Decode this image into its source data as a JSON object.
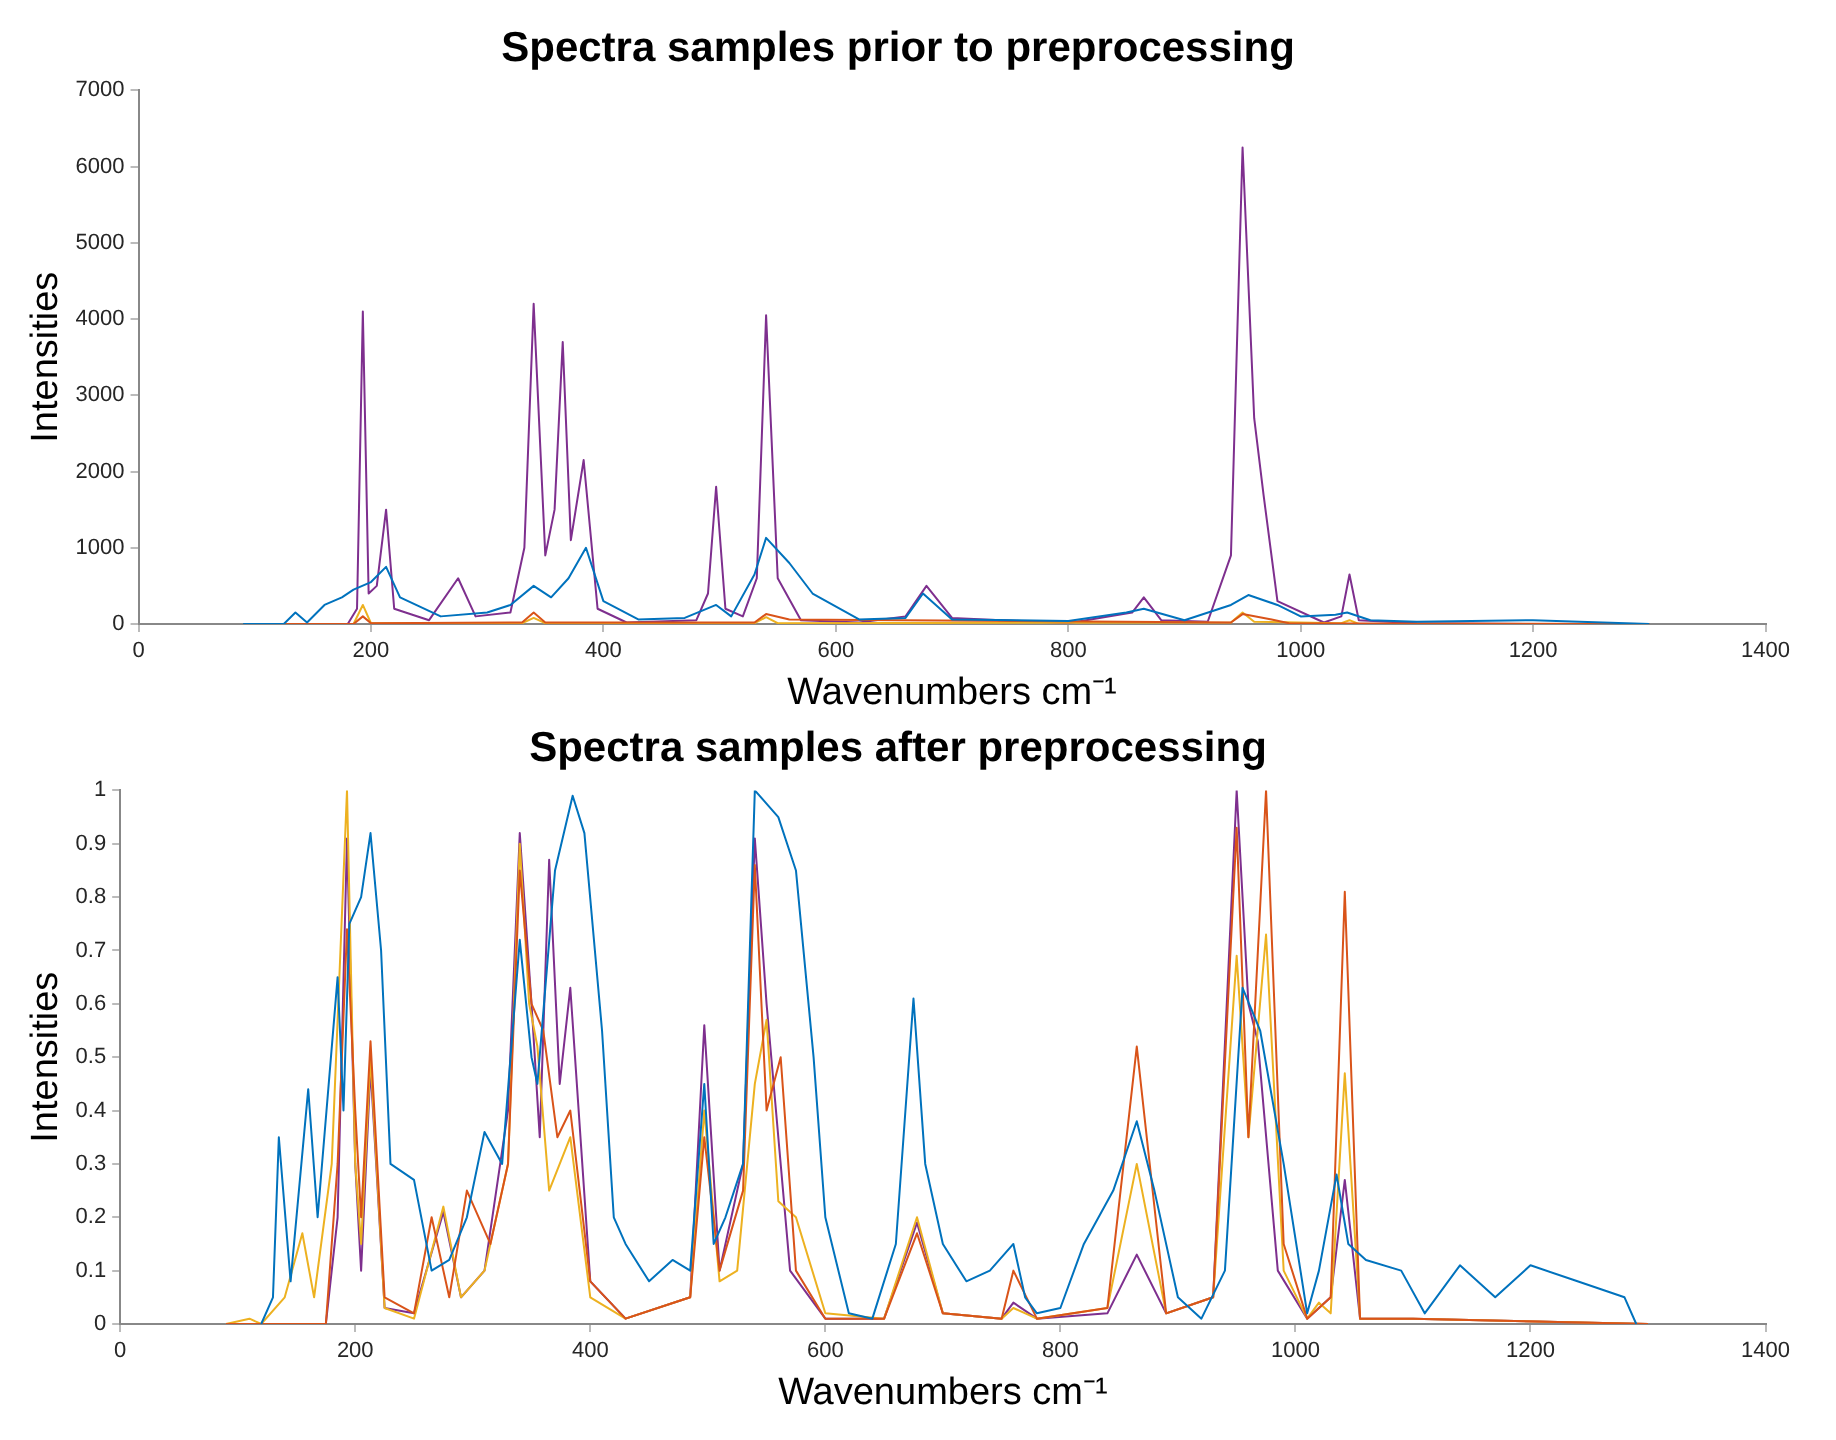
{
  "chart_data": [
    {
      "type": "line",
      "title": "Spectra samples prior to preprocessing",
      "xlabel": "Wavenumbers cm⁻¹",
      "ylabel": "Intensities",
      "xlim": [
        0,
        1400
      ],
      "xticks": [
        0,
        200,
        400,
        600,
        800,
        1000,
        1200,
        1400
      ],
      "ylim": [
        0,
        7000
      ],
      "yticks": [
        0,
        1000,
        2000,
        3000,
        4000,
        5000,
        6000,
        7000
      ],
      "grid": false,
      "legend": false,
      "marker": "none",
      "line_style": "solid",
      "series": [
        {
          "color": "#0072bd",
          "x": [
            90,
            125,
            135,
            145,
            160,
            175,
            185,
            200,
            213,
            225,
            260,
            300,
            320,
            340,
            355,
            370,
            385,
            400,
            430,
            470,
            497,
            510,
            530,
            540,
            560,
            580,
            620,
            660,
            675,
            700,
            800,
            850,
            865,
            900,
            940,
            955,
            980,
            1000,
            1030,
            1040,
            1060,
            1100,
            1200,
            1300
          ],
          "values": [
            0,
            0,
            150,
            20,
            250,
            350,
            450,
            550,
            750,
            350,
            100,
            150,
            250,
            500,
            350,
            600,
            1000,
            300,
            60,
            80,
            250,
            100,
            650,
            1130,
            800,
            400,
            60,
            80,
            400,
            60,
            40,
            150,
            200,
            50,
            250,
            380,
            250,
            100,
            120,
            150,
            50,
            30,
            50,
            0
          ]
        },
        {
          "color": "#d95319",
          "x": [
            90,
            185,
            193,
            200,
            330,
            340,
            350,
            530,
            540,
            560,
            940,
            950,
            975,
            990,
            1300
          ],
          "values": [
            0,
            0,
            100,
            10,
            20,
            150,
            20,
            20,
            130,
            60,
            20,
            130,
            60,
            10,
            0
          ]
        },
        {
          "color": "#edb120",
          "x": [
            90,
            185,
            193,
            200,
            330,
            340,
            350,
            530,
            540,
            550,
            940,
            950,
            960,
            1035,
            1042,
            1050,
            1300
          ],
          "values": [
            0,
            0,
            250,
            10,
            10,
            80,
            10,
            10,
            90,
            10,
            20,
            150,
            30,
            10,
            50,
            0,
            0
          ]
        },
        {
          "color": "#7e2f8e",
          "x": [
            90,
            180,
            188,
            193,
            198,
            205,
            213,
            220,
            250,
            275,
            290,
            320,
            332,
            340,
            350,
            358,
            365,
            372,
            383,
            395,
            420,
            480,
            490,
            497,
            505,
            520,
            532,
            540,
            550,
            570,
            620,
            660,
            678,
            700,
            800,
            855,
            865,
            880,
            920,
            940,
            950,
            960,
            968,
            980,
            1020,
            1035,
            1042,
            1050,
            1100,
            1200,
            1300
          ],
          "values": [
            0,
            0,
            200,
            4100,
            400,
            500,
            1500,
            200,
            50,
            600,
            100,
            150,
            1000,
            4200,
            900,
            1500,
            3700,
            1100,
            2150,
            200,
            20,
            50,
            400,
            1800,
            200,
            100,
            600,
            4050,
            600,
            50,
            20,
            100,
            500,
            80,
            10,
            150,
            350,
            50,
            30,
            900,
            6250,
            2700,
            1700,
            300,
            20,
            100,
            650,
            50,
            10,
            0,
            0
          ]
        }
      ]
    },
    {
      "type": "line",
      "title": "Spectra samples after preprocessing",
      "xlabel": "Wavenumbers cm⁻¹",
      "ylabel": "Intensities",
      "xlim": [
        0,
        1400
      ],
      "xticks": [
        0,
        200,
        400,
        600,
        800,
        1000,
        1200,
        1400
      ],
      "ylim": [
        0,
        1
      ],
      "yticks": [
        0,
        0.1,
        0.2,
        0.3,
        0.4,
        0.5,
        0.6,
        0.7,
        0.8,
        0.9,
        1
      ],
      "grid": false,
      "legend": false,
      "marker": "none",
      "line_style": "solid",
      "series": [
        {
          "color": "#0072bd",
          "x": [
            120,
            130,
            135,
            145,
            160,
            168,
            185,
            190,
            195,
            205,
            213,
            222,
            230,
            250,
            265,
            280,
            295,
            310,
            325,
            340,
            350,
            355,
            370,
            385,
            395,
            410,
            420,
            430,
            450,
            470,
            485,
            497,
            505,
            515,
            530,
            540,
            560,
            575,
            590,
            600,
            620,
            640,
            660,
            675,
            685,
            700,
            720,
            740,
            760,
            770,
            780,
            800,
            820,
            845,
            865,
            880,
            900,
            920,
            940,
            955,
            970,
            990,
            1010,
            1020,
            1035,
            1045,
            1060,
            1090,
            1110,
            1140,
            1170,
            1200,
            1240,
            1280,
            1290
          ],
          "values": [
            0,
            0.05,
            0.35,
            0.08,
            0.44,
            0.2,
            0.65,
            0.4,
            0.75,
            0.8,
            0.92,
            0.7,
            0.3,
            0.27,
            0.1,
            0.12,
            0.2,
            0.36,
            0.3,
            0.72,
            0.5,
            0.45,
            0.85,
            0.99,
            0.92,
            0.55,
            0.2,
            0.15,
            0.08,
            0.12,
            0.1,
            0.45,
            0.15,
            0.2,
            0.3,
            1.0,
            0.95,
            0.85,
            0.5,
            0.2,
            0.02,
            0.01,
            0.15,
            0.61,
            0.3,
            0.15,
            0.08,
            0.1,
            0.15,
            0.05,
            0.02,
            0.03,
            0.15,
            0.25,
            0.38,
            0.25,
            0.05,
            0.01,
            0.1,
            0.63,
            0.55,
            0.3,
            0.02,
            0.1,
            0.28,
            0.15,
            0.12,
            0.1,
            0.02,
            0.11,
            0.05,
            0.11,
            0.08,
            0.05,
            0
          ]
        },
        {
          "color": "#d95319",
          "x": [
            90,
            175,
            185,
            193,
            200,
            205,
            213,
            225,
            250,
            265,
            280,
            295,
            315,
            330,
            340,
            350,
            360,
            372,
            383,
            400,
            430,
            485,
            497,
            510,
            530,
            540,
            550,
            562,
            575,
            600,
            650,
            678,
            700,
            750,
            760,
            780,
            840,
            865,
            890,
            930,
            950,
            960,
            975,
            990,
            1010,
            1030,
            1042,
            1055,
            1100,
            1300
          ],
          "values": [
            0,
            0,
            0.3,
            0.74,
            0.4,
            0.2,
            0.53,
            0.05,
            0.02,
            0.2,
            0.05,
            0.25,
            0.15,
            0.3,
            0.85,
            0.6,
            0.55,
            0.35,
            0.4,
            0.08,
            0.01,
            0.05,
            0.35,
            0.1,
            0.25,
            0.86,
            0.4,
            0.5,
            0.1,
            0.01,
            0.01,
            0.17,
            0.02,
            0.01,
            0.1,
            0.01,
            0.03,
            0.52,
            0.02,
            0.05,
            0.93,
            0.35,
            1.0,
            0.15,
            0.01,
            0.05,
            0.81,
            0.01,
            0.01,
            0
          ]
        },
        {
          "color": "#edb120",
          "x": [
            90,
            110,
            120,
            140,
            155,
            165,
            180,
            193,
            200,
            205,
            213,
            225,
            250,
            275,
            290,
            310,
            330,
            340,
            348,
            355,
            365,
            383,
            400,
            430,
            485,
            497,
            510,
            525,
            540,
            550,
            560,
            575,
            600,
            650,
            678,
            700,
            750,
            760,
            780,
            840,
            865,
            890,
            930,
            950,
            960,
            975,
            990,
            1010,
            1020,
            1030,
            1042,
            1055,
            1100,
            1300
          ],
          "values": [
            0,
            0.01,
            0,
            0.05,
            0.17,
            0.05,
            0.3,
            1.0,
            0.3,
            0.15,
            0.5,
            0.03,
            0.01,
            0.22,
            0.05,
            0.1,
            0.3,
            0.9,
            0.6,
            0.52,
            0.25,
            0.35,
            0.05,
            0.01,
            0.05,
            0.4,
            0.08,
            0.1,
            0.45,
            0.57,
            0.23,
            0.2,
            0.02,
            0.01,
            0.2,
            0.02,
            0.01,
            0.03,
            0.01,
            0.03,
            0.3,
            0.02,
            0.05,
            0.69,
            0.35,
            0.73,
            0.1,
            0.01,
            0.04,
            0.02,
            0.47,
            0.01,
            0.01,
            0
          ]
        },
        {
          "color": "#7e2f8e",
          "x": [
            90,
            175,
            185,
            193,
            200,
            205,
            213,
            225,
            250,
            275,
            290,
            310,
            330,
            340,
            350,
            357,
            365,
            374,
            383,
            400,
            430,
            485,
            497,
            510,
            530,
            540,
            550,
            570,
            600,
            650,
            678,
            700,
            750,
            760,
            780,
            840,
            865,
            890,
            930,
            950,
            960,
            968,
            985,
            1010,
            1030,
            1042,
            1055,
            1100,
            1300
          ],
          "values": [
            0,
            0,
            0.2,
            0.91,
            0.3,
            0.1,
            0.48,
            0.03,
            0.02,
            0.21,
            0.05,
            0.1,
            0.4,
            0.92,
            0.6,
            0.35,
            0.87,
            0.45,
            0.63,
            0.08,
            0.01,
            0.05,
            0.56,
            0.1,
            0.3,
            0.91,
            0.6,
            0.1,
            0.01,
            0.01,
            0.19,
            0.02,
            0.01,
            0.04,
            0.01,
            0.02,
            0.13,
            0.02,
            0.05,
            1.0,
            0.6,
            0.53,
            0.1,
            0.01,
            0.05,
            0.27,
            0.01,
            0.01,
            0
          ]
        }
      ]
    }
  ]
}
